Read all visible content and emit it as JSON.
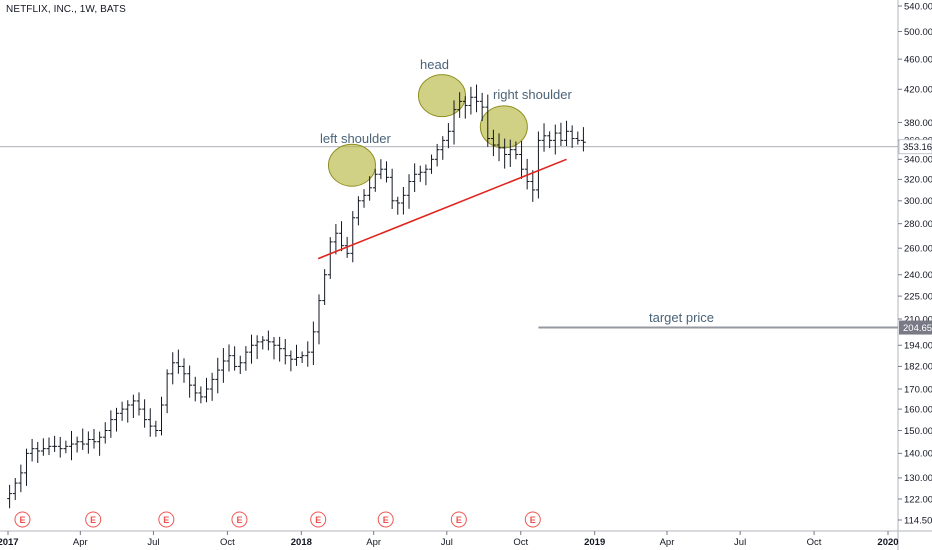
{
  "symbol_title": "NETFLIX, INC., 1W, BATS",
  "annotations": {
    "left_shoulder": "left shoulder",
    "head": "head",
    "right_shoulder": "right shoulder",
    "target_price": "target price"
  },
  "price_labels": {
    "current": "353.16",
    "target": "204.65"
  },
  "earnings_marker_label": "E",
  "colors": {
    "bars": "#131722",
    "neckline": "#e3221c",
    "highlight_fill": "#b5b53c",
    "highlight_stroke": "#8f8f20",
    "axis_label_bg": "#787b86",
    "guide_line": "#9598a1",
    "earnings": "#ef5350"
  },
  "chart_data": {
    "type": "ohlc",
    "title": "",
    "scale": "log",
    "ylim": [
      112,
      545
    ],
    "xlim": [
      "2016-12-27",
      "2020-01-20"
    ],
    "y_ticks": [
      114.5,
      122,
      130,
      140,
      150,
      160,
      170,
      182,
      194,
      210,
      225,
      240,
      260,
      280,
      300,
      320,
      340,
      360,
      380,
      420,
      460,
      500,
      540
    ],
    "y_tick_labels": [
      "114.50",
      "122.00",
      "130.00",
      "140.00",
      "150.00",
      "160.00",
      "170.00",
      "182.00",
      "194.00",
      "210.00",
      "225.00",
      "240.00",
      "260.00",
      "280.00",
      "300.00",
      "320.00",
      "340.00",
      "360.00",
      "380.00",
      "420.00",
      "460.00",
      "500.00",
      "540.00"
    ],
    "x_ticks": [
      {
        "date": "2017-01-01",
        "label": "2017",
        "bold": true
      },
      {
        "date": "2017-04-01",
        "label": "Apr",
        "bold": false
      },
      {
        "date": "2017-07-01",
        "label": "Jul",
        "bold": false
      },
      {
        "date": "2017-10-01",
        "label": "Oct",
        "bold": false
      },
      {
        "date": "2018-01-01",
        "label": "2018",
        "bold": true
      },
      {
        "date": "2018-04-01",
        "label": "Apr",
        "bold": false
      },
      {
        "date": "2018-07-01",
        "label": "Jul",
        "bold": false
      },
      {
        "date": "2018-10-01",
        "label": "Oct",
        "bold": false
      },
      {
        "date": "2019-01-01",
        "label": "2019",
        "bold": true
      },
      {
        "date": "2019-04-01",
        "label": "Apr",
        "bold": false
      },
      {
        "date": "2019-07-01",
        "label": "Jul",
        "bold": false
      },
      {
        "date": "2019-10-01",
        "label": "Oct",
        "bold": false
      },
      {
        "date": "2020-01-01",
        "label": "2020",
        "bold": true
      }
    ],
    "earnings_dates": [
      "2017-01-19",
      "2017-04-17",
      "2017-07-17",
      "2017-10-16",
      "2018-01-22",
      "2018-04-16",
      "2018-07-16",
      "2018-10-16"
    ],
    "current_price": 353.16,
    "target_price": 204.65,
    "target_start": "2018-10-23",
    "neckline": {
      "start": [
        "2018-01-22",
        252
      ],
      "end": [
        "2018-11-27",
        340
      ]
    },
    "highlights": [
      {
        "center": [
          "2018-03-05",
          334
        ],
        "label": "left shoulder"
      },
      {
        "center": [
          "2018-06-25",
          412
        ],
        "label": "head"
      },
      {
        "center": [
          "2018-09-10",
          375
        ],
        "label": "right shoulder"
      }
    ],
    "weekly_closes": [
      124,
      128,
      132,
      140,
      142,
      141,
      142,
      143,
      143,
      142,
      143,
      144,
      145,
      144,
      146,
      145,
      147,
      150,
      155,
      158,
      160,
      162,
      164,
      160,
      155,
      152,
      150,
      162,
      178,
      184,
      182,
      178,
      172,
      168,
      166,
      170,
      175,
      180,
      185,
      188,
      182,
      184,
      190,
      194,
      196,
      197,
      196,
      194,
      192,
      188,
      186,
      187,
      188,
      190,
      202,
      222,
      240,
      265,
      272,
      262,
      256,
      285,
      300,
      305,
      312,
      325,
      330,
      322,
      300,
      298,
      305,
      318,
      325,
      327,
      330,
      340,
      350,
      360,
      370,
      395,
      405,
      400,
      410,
      405,
      398,
      362,
      355,
      352,
      345,
      350,
      345,
      330,
      318,
      310,
      360,
      365,
      360,
      368,
      360,
      370,
      362,
      360,
      358
    ]
  }
}
